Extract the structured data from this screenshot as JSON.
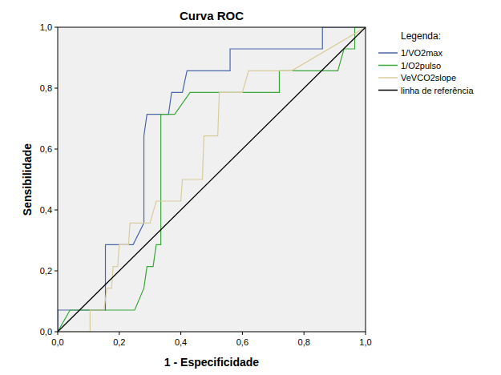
{
  "chart_data": {
    "type": "line",
    "title": "Curva ROC",
    "x_label": "1 - Especificidade",
    "y_label": "Sensibilidade",
    "legend_title": "Legenda:",
    "legend": "right",
    "xlim": [
      0,
      1
    ],
    "ylim": [
      0,
      1
    ],
    "xticks": [
      {
        "value": 0,
        "label": "0,0"
      },
      {
        "value": 0.2,
        "label": "0,2"
      },
      {
        "value": 0.4,
        "label": "0,4"
      },
      {
        "value": 0.6,
        "label": "0,6"
      },
      {
        "value": 0.8,
        "label": "0,8"
      },
      {
        "value": 1,
        "label": "1,0"
      }
    ],
    "yticks": [
      {
        "value": 0,
        "label": "0,0"
      },
      {
        "value": 0.2,
        "label": "0,2"
      },
      {
        "value": 0.4,
        "label": "0,4"
      },
      {
        "value": 0.6,
        "label": "0,6"
      },
      {
        "value": 0.8,
        "label": "0,8"
      },
      {
        "value": 1,
        "label": "1,0"
      }
    ],
    "series": [
      {
        "name": "1/VO2max",
        "color": "#4a66ac",
        "x": [
          0,
          0,
          0.052,
          0.155,
          0.155,
          0.245,
          0.28,
          0.28,
          0.29,
          0.36,
          0.37,
          0.405,
          0.42,
          0.56,
          0.56,
          0.86,
          0.86,
          1.0
        ],
        "values": [
          0,
          0.071,
          0.071,
          0.071,
          0.286,
          0.286,
          0.357,
          0.643,
          0.714,
          0.714,
          0.786,
          0.786,
          0.857,
          0.857,
          0.929,
          0.929,
          1.0,
          1.0
        ]
      },
      {
        "name": "1/O2pulso",
        "color": "#3aa63a",
        "x": [
          0,
          0.04,
          0.25,
          0.28,
          0.29,
          0.31,
          0.32,
          0.335,
          0.335,
          0.38,
          0.43,
          0.72,
          0.72,
          0.91,
          0.93,
          0.965,
          0.965,
          1.0
        ],
        "values": [
          0,
          0.071,
          0.071,
          0.143,
          0.214,
          0.214,
          0.286,
          0.286,
          0.714,
          0.714,
          0.786,
          0.786,
          0.857,
          0.857,
          0.929,
          0.929,
          1.0,
          1.0
        ]
      },
      {
        "name": "VeVCO2slope",
        "color": "#d9cc9c",
        "x": [
          0,
          0.105,
          0.105,
          0.15,
          0.16,
          0.175,
          0.18,
          0.195,
          0.2,
          0.23,
          0.235,
          0.3,
          0.32,
          0.4,
          0.405,
          0.47,
          0.475,
          0.52,
          0.525,
          0.6,
          0.62,
          0.76,
          1.0
        ],
        "values": [
          0,
          0,
          0.071,
          0.071,
          0.143,
          0.143,
          0.214,
          0.214,
          0.286,
          0.286,
          0.357,
          0.357,
          0.429,
          0.429,
          0.5,
          0.5,
          0.643,
          0.643,
          0.786,
          0.786,
          0.857,
          0.857,
          1.0
        ]
      },
      {
        "name": "linha de referência",
        "color": "#000000",
        "x": [
          0,
          1
        ],
        "values": [
          0,
          1
        ]
      }
    ]
  }
}
